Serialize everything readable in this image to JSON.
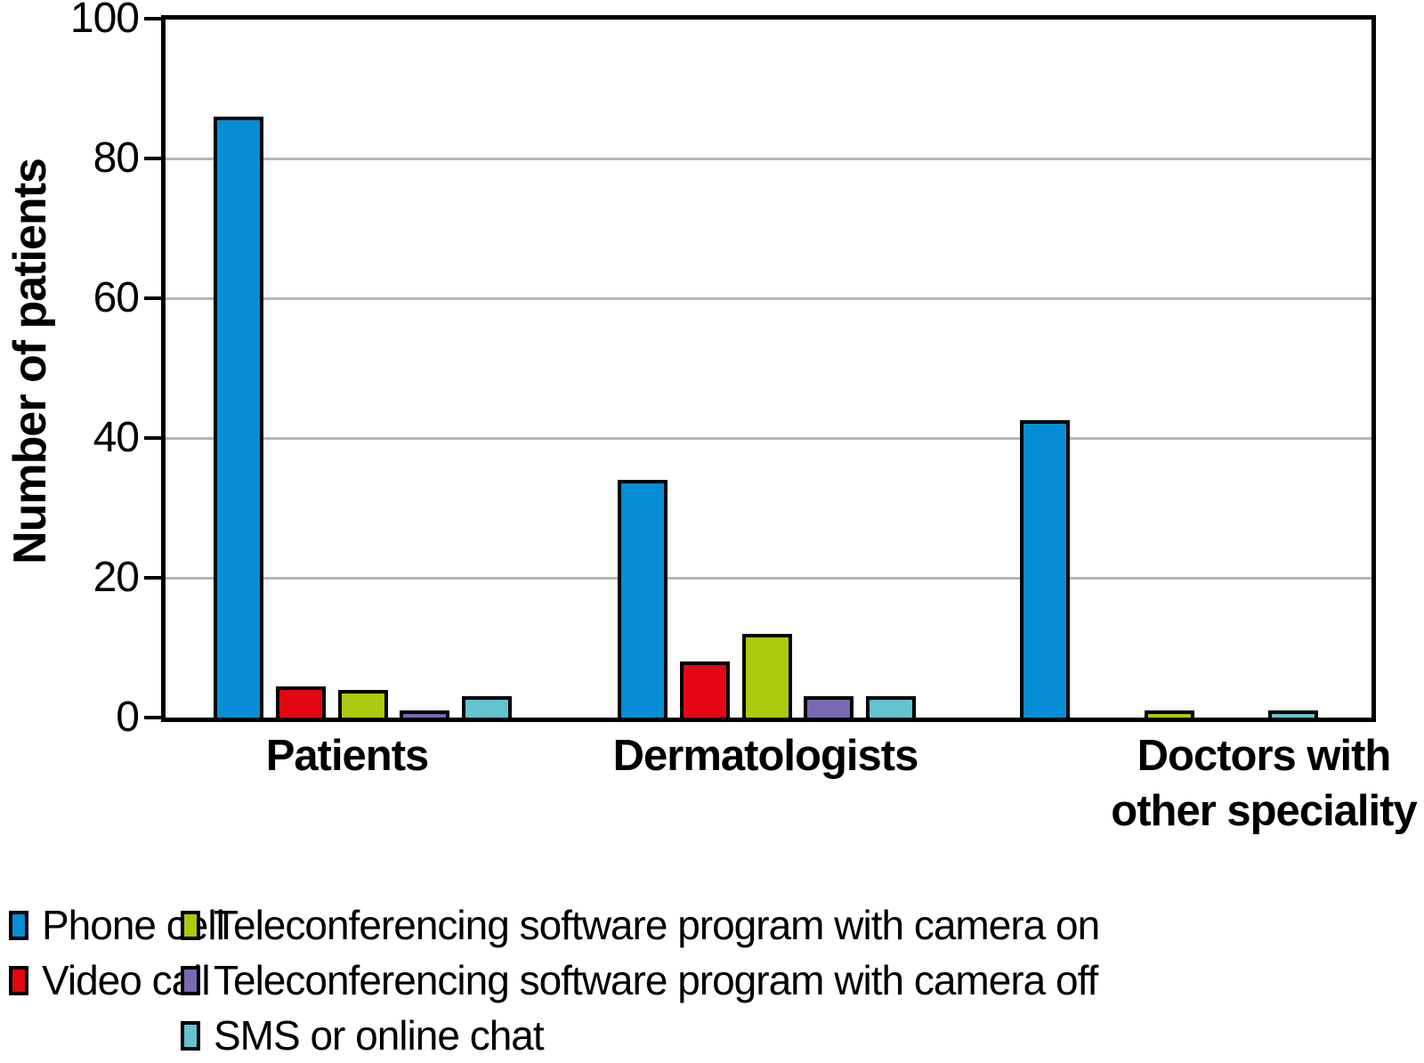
{
  "chart_data": {
    "type": "bar",
    "title": "",
    "xlabel": "",
    "ylabel": "Number of patients",
    "ylim": [
      0,
      100
    ],
    "yticks": [
      0,
      20,
      40,
      60,
      80,
      100
    ],
    "grid": "horizontal",
    "gridline_color": "#b5b5b5",
    "legend_position": "bottom-left",
    "categories": [
      "Patients",
      "Dermatologists",
      "Doctors with\nother speciality"
    ],
    "series": [
      {
        "name": "Phone cell",
        "color": "#078dd4",
        "values": [
          86,
          34,
          42.5
        ]
      },
      {
        "name": "Video call",
        "color": "#e20713",
        "values": [
          4.5,
          8,
          0
        ]
      },
      {
        "name": "Teleconferencing software program with camera on",
        "color": "#adc90d",
        "values": [
          4,
          12,
          1
        ]
      },
      {
        "name": "Teleconferencing software program with camera off",
        "color": "#7a68b0",
        "values": [
          1,
          3,
          0
        ]
      },
      {
        "name": "SMS or online chat",
        "color": "#63c3d1",
        "values": [
          3,
          3,
          1
        ]
      }
    ]
  }
}
